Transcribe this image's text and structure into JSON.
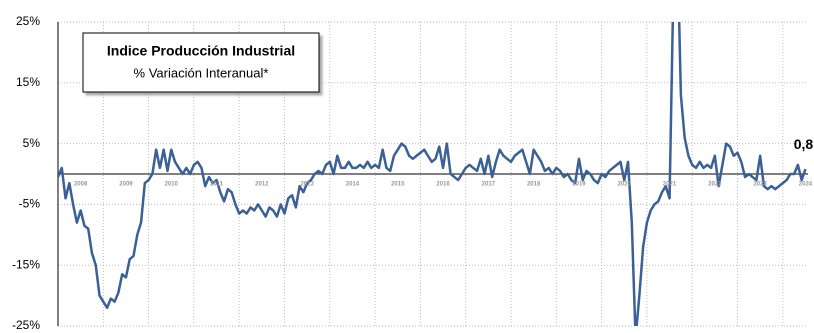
{
  "chart_data": {
    "type": "line",
    "title": "Indice Producción Industrial",
    "subtitle": "% Variación Interanual*",
    "annotation": "0,8",
    "color": "#3b6096",
    "grid": true,
    "ylim": [
      -25,
      25
    ],
    "yticks": [
      {
        "value": -25,
        "label": "-25%"
      },
      {
        "value": -15,
        "label": "-15%"
      },
      {
        "value": -5,
        "label": "-5%"
      },
      {
        "value": 5,
        "label": "5%"
      },
      {
        "value": 15,
        "label": "15%"
      },
      {
        "value": 25,
        "label": "25%"
      }
    ],
    "categories": [
      null,
      null,
      null,
      null,
      null,
      null,
      "2008",
      null,
      null,
      null,
      null,
      null,
      null,
      null,
      null,
      null,
      null,
      null,
      "2009",
      null,
      null,
      null,
      null,
      null,
      null,
      null,
      null,
      null,
      null,
      null,
      "2010",
      null,
      null,
      null,
      null,
      null,
      null,
      null,
      null,
      null,
      null,
      null,
      "2011",
      null,
      null,
      null,
      null,
      null,
      null,
      null,
      null,
      null,
      null,
      null,
      "2012",
      null,
      null,
      null,
      null,
      null,
      null,
      null,
      null,
      null,
      null,
      null,
      "2013",
      null,
      null,
      null,
      null,
      null,
      null,
      null,
      null,
      null,
      null,
      null,
      "2014",
      null,
      null,
      null,
      null,
      null,
      null,
      null,
      null,
      null,
      null,
      null,
      "2015",
      null,
      null,
      null,
      null,
      null,
      null,
      null,
      null,
      null,
      null,
      null,
      "2016",
      null,
      null,
      null,
      null,
      null,
      null,
      null,
      null,
      null,
      null,
      null,
      "2017",
      null,
      null,
      null,
      null,
      null,
      null,
      null,
      null,
      null,
      null,
      null,
      "2018",
      null,
      null,
      null,
      null,
      null,
      null,
      null,
      null,
      null,
      null,
      null,
      "2019",
      null,
      null,
      null,
      null,
      null,
      null,
      null,
      null,
      null,
      null,
      null,
      "2020",
      null,
      null,
      null,
      null,
      null,
      null,
      null,
      null,
      null,
      null,
      null,
      "2021",
      null,
      null,
      null,
      null,
      null,
      null,
      null,
      null,
      null,
      null,
      null,
      "2022",
      null,
      null,
      null,
      null,
      null,
      null,
      null,
      null,
      null,
      null,
      null,
      "2023",
      null,
      null,
      null,
      null,
      null,
      null,
      null,
      null,
      null,
      null,
      null,
      "2024"
    ],
    "values": [
      -0.5,
      1,
      -4,
      -1.5,
      -5,
      -8,
      -6,
      -8.5,
      -9,
      -13,
      -15,
      -20,
      -21,
      -22,
      -20.5,
      -21,
      -19.5,
      -16.5,
      -17,
      -14,
      -13.5,
      -10,
      -8,
      -1.5,
      -1,
      0,
      4,
      1,
      4,
      0.5,
      4,
      2,
      1,
      0,
      1,
      0,
      1.5,
      2,
      1,
      -2,
      -0.5,
      -1.5,
      -1,
      -3,
      -4.5,
      -2.5,
      -3,
      -5,
      -6.5,
      -6,
      -6.5,
      -5.5,
      -6,
      -5,
      -6,
      -7,
      -5.5,
      -6,
      -7,
      -5,
      -6.5,
      -4,
      -3.5,
      -5.5,
      -2,
      -3,
      -1.5,
      -1,
      0,
      0.5,
      0,
      1.5,
      2,
      0,
      3,
      1,
      1,
      2,
      1,
      1,
      1.5,
      1,
      2,
      1,
      1.5,
      1,
      4,
      1,
      0.5,
      3,
      4,
      5,
      4.5,
      3,
      2.5,
      3,
      3.5,
      4,
      3,
      2,
      2.5,
      4.5,
      1,
      5,
      0,
      -0.5,
      -1,
      0,
      1,
      1.5,
      1,
      0.5,
      2.5,
      0,
      3,
      -0.5,
      2,
      4,
      3,
      2.5,
      2,
      3,
      3.5,
      4,
      2,
      0,
      4,
      3,
      2,
      0.5,
      1,
      0,
      1,
      0.5,
      -0.5,
      0,
      -1,
      -1.5,
      2.5,
      -1,
      0.5,
      0,
      -1,
      -1.5,
      0,
      -0.5,
      0.5,
      1,
      1.5,
      2,
      -1,
      2,
      -8,
      -27,
      -20,
      -12,
      -8,
      -6,
      -5,
      -4.5,
      -3,
      -2,
      -4,
      30,
      40,
      13,
      6,
      3,
      1.5,
      1,
      2,
      1,
      1.5,
      1,
      3,
      -2,
      1.5,
      5,
      4.5,
      3,
      3.5,
      2,
      -0.5,
      0,
      -0.5,
      -1,
      3,
      -2,
      -2.5,
      -2,
      -2.5,
      -2,
      -1.5,
      -1,
      0,
      0,
      1.5,
      -1,
      0.8
    ]
  }
}
